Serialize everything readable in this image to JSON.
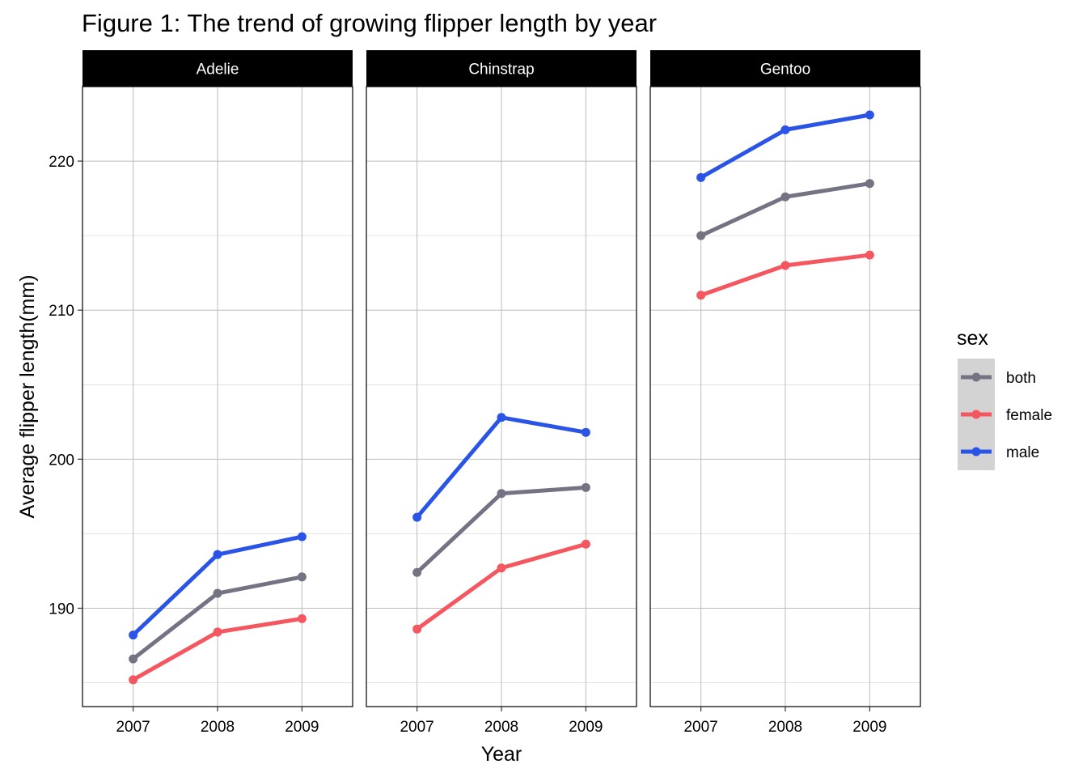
{
  "chart_data": {
    "type": "line",
    "title": "Figure 1: The trend of growing flipper length by year",
    "xlabel": "Year",
    "ylabel": "Average flipper length(mm)",
    "x": [
      2007,
      2008,
      2009
    ],
    "x_tick_labels": [
      "2007",
      "2008",
      "2009"
    ],
    "y_ticks": [
      190,
      200,
      210,
      220
    ],
    "y_tick_labels": [
      "190",
      "200",
      "210",
      "220"
    ],
    "ylim": [
      183.4,
      225
    ],
    "grid": true,
    "legend": {
      "title": "sex",
      "position": "right",
      "entries": [
        {
          "label": "both",
          "color": "#747384"
        },
        {
          "label": "female",
          "color": "#f4575f"
        },
        {
          "label": "male",
          "color": "#2a54e6"
        }
      ]
    },
    "facets": [
      {
        "name": "Adelie",
        "series": [
          {
            "name": "both",
            "color": "#747384",
            "values": [
              186.6,
              191.0,
              192.1
            ]
          },
          {
            "name": "female",
            "color": "#f4575f",
            "values": [
              185.2,
              188.4,
              189.3
            ]
          },
          {
            "name": "male",
            "color": "#2a54e6",
            "values": [
              188.2,
              193.6,
              194.8
            ]
          }
        ]
      },
      {
        "name": "Chinstrap",
        "series": [
          {
            "name": "both",
            "color": "#747384",
            "values": [
              192.4,
              197.7,
              198.1
            ]
          },
          {
            "name": "female",
            "color": "#f4575f",
            "values": [
              188.6,
              192.7,
              194.3
            ]
          },
          {
            "name": "male",
            "color": "#2a54e6",
            "values": [
              196.1,
              202.8,
              201.8
            ]
          }
        ]
      },
      {
        "name": "Gentoo",
        "series": [
          {
            "name": "both",
            "color": "#747384",
            "values": [
              215.0,
              217.6,
              218.5
            ]
          },
          {
            "name": "female",
            "color": "#f4575f",
            "values": [
              211.0,
              213.0,
              213.7
            ]
          },
          {
            "name": "male",
            "color": "#2a54e6",
            "values": [
              218.9,
              222.1,
              223.1
            ]
          }
        ]
      }
    ]
  }
}
